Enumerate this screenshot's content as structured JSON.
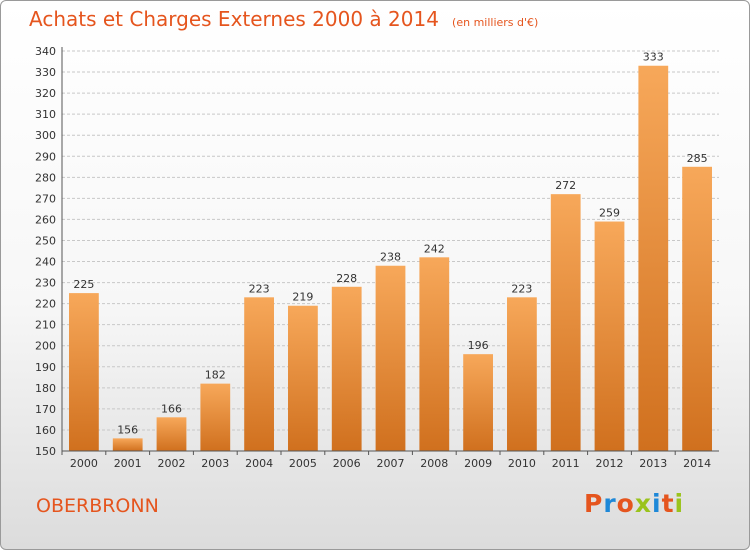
{
  "chart_data": {
    "type": "bar",
    "title": "Achats et Charges Externes 2000 à 2014",
    "subtitle": "(en milliers d'€)",
    "categories": [
      "2000",
      "2001",
      "2002",
      "2003",
      "2004",
      "2005",
      "2006",
      "2007",
      "2008",
      "2009",
      "2010",
      "2011",
      "2012",
      "2013",
      "2014"
    ],
    "values": [
      225,
      156,
      166,
      182,
      223,
      219,
      228,
      238,
      242,
      196,
      223,
      272,
      259,
      333,
      285
    ],
    "ylim": [
      150,
      340
    ],
    "yticks": [
      150,
      160,
      170,
      180,
      190,
      200,
      210,
      220,
      230,
      240,
      250,
      260,
      270,
      280,
      290,
      300,
      310,
      320,
      330,
      340
    ],
    "grid": true,
    "xlabel": "",
    "ylabel": "",
    "bar_color_top": "#f7a85a",
    "bar_color_bottom": "#d0701e"
  },
  "footer": {
    "town": "OBERBRONN",
    "logo_text": "Proxiti",
    "logo_colors": [
      "#e5551e",
      "#1e88d8",
      "#e5551e",
      "#9ac31c",
      "#1e88d8",
      "#e5551e",
      "#9ac31c"
    ]
  },
  "colors": {
    "accent": "#e5551e"
  }
}
